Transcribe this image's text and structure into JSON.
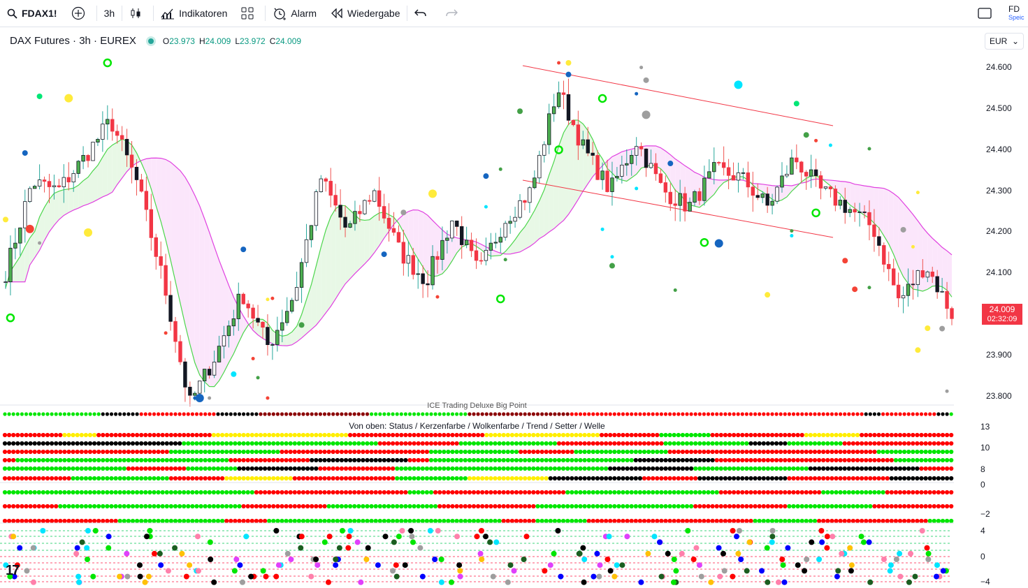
{
  "toolbar": {
    "symbol": "FDAX1!",
    "interval": "3h",
    "indicators_label": "Indikatoren",
    "alert_label": "Alarm",
    "replay_label": "Wiedergabe",
    "right_label": "FD",
    "right_sub": "Speic"
  },
  "legend": {
    "title": "DAX Futures · 3h · EUREX",
    "o_label": "O",
    "o_value": "23.973",
    "h_label": "H",
    "h_value": "24.009",
    "l_label": "L",
    "l_value": "23.972",
    "c_label": "C",
    "c_value": "24.009"
  },
  "currency": "EUR",
  "price_axis": {
    "ticks": [
      "24.600",
      "24.500",
      "24.400",
      "24.300",
      "24.200",
      "24.100",
      "23.900",
      "23.800"
    ],
    "last_price": "24.009",
    "countdown": "02:32:09"
  },
  "indicators": {
    "dot_panel_title_partial": "ICE Trading Deluxe Big Point",
    "panel1_title": "Von oben: Status / Kerzenfarbe / Wolkenfarbe / Trend / Setter / Welle",
    "panel1_levels": [
      "13",
      "10",
      "8"
    ],
    "panel2_levels": [
      "0",
      "−2"
    ],
    "panel3_levels": [
      "4",
      "0",
      "−4"
    ]
  },
  "chart_data": {
    "type": "candlestick",
    "symbol": "FDAX1!",
    "interval": "3h",
    "price_range": [
      23760,
      24640
    ],
    "close_path_approx": [
      24100,
      24320,
      24300,
      24380,
      24470,
      24320,
      24080,
      23780,
      23900,
      24050,
      23920,
      24050,
      24330,
      24200,
      24300,
      24150,
      24080,
      24230,
      24100,
      24230,
      24300,
      24550,
      24400,
      24300,
      24420,
      24300,
      24260,
      24350,
      24330,
      24260,
      24380,
      24300,
      24260,
      24210,
      24030,
      24120,
      24000
    ]
  },
  "colors": {
    "up": "#ffffff",
    "down": "#f23645",
    "bull_green": "#00e600",
    "bear_red": "#ff0000",
    "cloud_line_green": "#4cd64c",
    "cloud_line_magenta": "#e040e0",
    "accent": "#2962ff"
  }
}
